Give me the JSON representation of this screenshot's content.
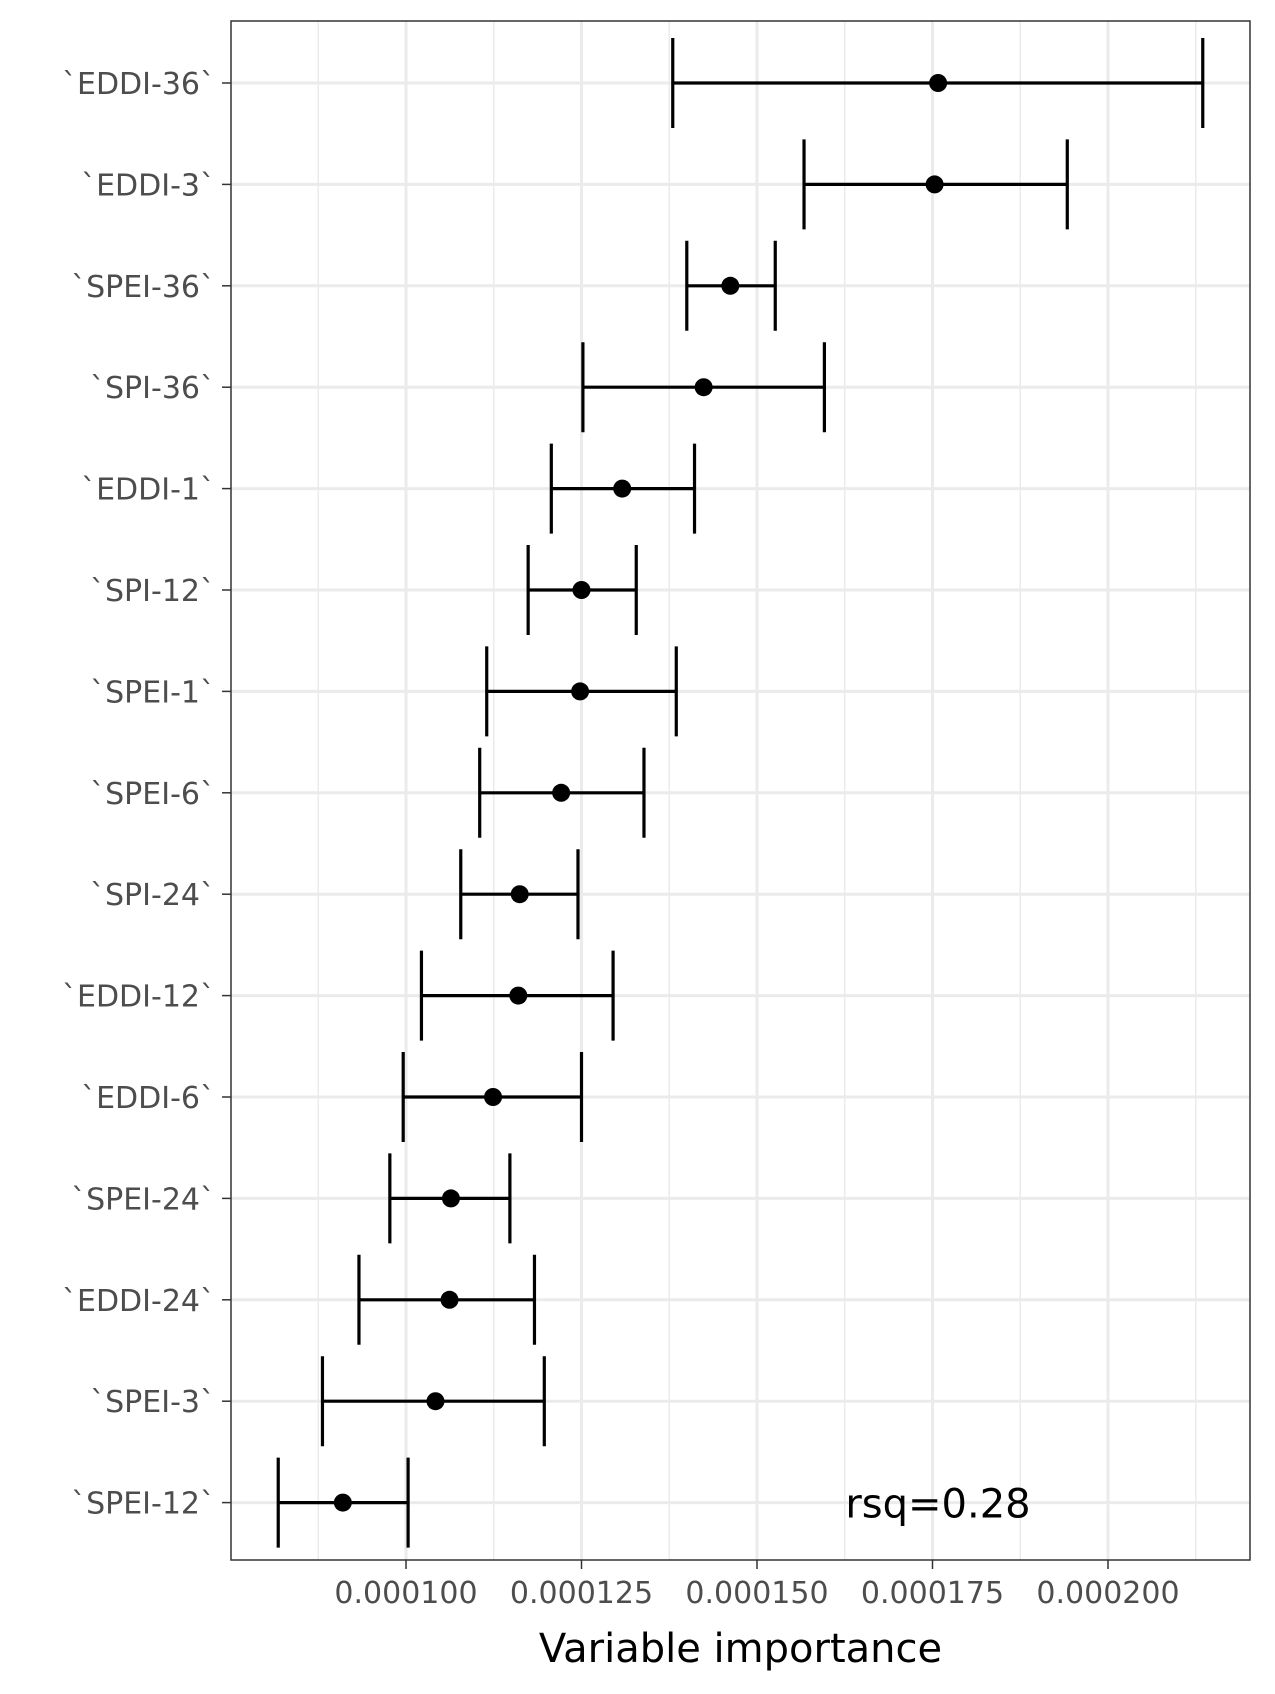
{
  "chart_data": {
    "type": "scatter",
    "subtype": "point-with-errorbars",
    "orientation": "horizontal",
    "title": "",
    "xlabel": "Variable importance",
    "ylabel": "",
    "xlim": [
      6.8e-05,
      0.000213
    ],
    "xticks": [
      0.0001,
      0.000125,
      0.00015,
      0.000175,
      0.0002
    ],
    "xtick_labels": [
      "0.000100",
      "0.000125",
      "0.000150",
      "0.000175",
      "0.000200"
    ],
    "categories": [
      "`EDDI-36`",
      "`EDDI-3`",
      "`SPEI-36`",
      "`SPI-36`",
      "`EDDI-1`",
      "`SPI-12`",
      "`SPEI-1`",
      "`SPEI-6`",
      "`SPI-24`",
      "`EDDI-12`",
      "`EDDI-6`",
      "`SPEI-24`",
      "`EDDI-24`",
      "`SPEI-3`",
      "`SPEI-12`"
    ],
    "values": [
      0.0001758,
      0.0001753,
      0.0001462,
      0.0001424,
      0.0001308,
      0.000125,
      0.0001248,
      0.0001221,
      0.0001162,
      0.000116,
      0.0001124,
      0.0001064,
      0.0001062,
      0.0001042,
      9.1e-05
    ],
    "lower": [
      0.000138,
      0.0001567,
      0.00014,
      0.0001252,
      0.0001207,
      0.0001174,
      0.0001115,
      0.0001105,
      0.0001078,
      0.0001022,
      9.96e-05,
      9.77e-05,
      9.33e-05,
      8.81e-05,
      8.18e-05
    ],
    "upper": [
      0.0002135,
      0.0001942,
      0.0001526,
      0.0001596,
      0.0001411,
      0.0001328,
      0.0001385,
      0.0001339,
      0.0001245,
      0.0001295,
      0.000125,
      0.0001148,
      0.0001183,
      0.0001197,
      0.0001003
    ],
    "annotation": "rsq=0.28",
    "grid": true,
    "legend": "none",
    "colors": {
      "point": "#000000",
      "errorbar": "#000000",
      "grid": "#ebebeb",
      "panel_border": "#333333",
      "tick_label": "#4d4d4d"
    }
  }
}
